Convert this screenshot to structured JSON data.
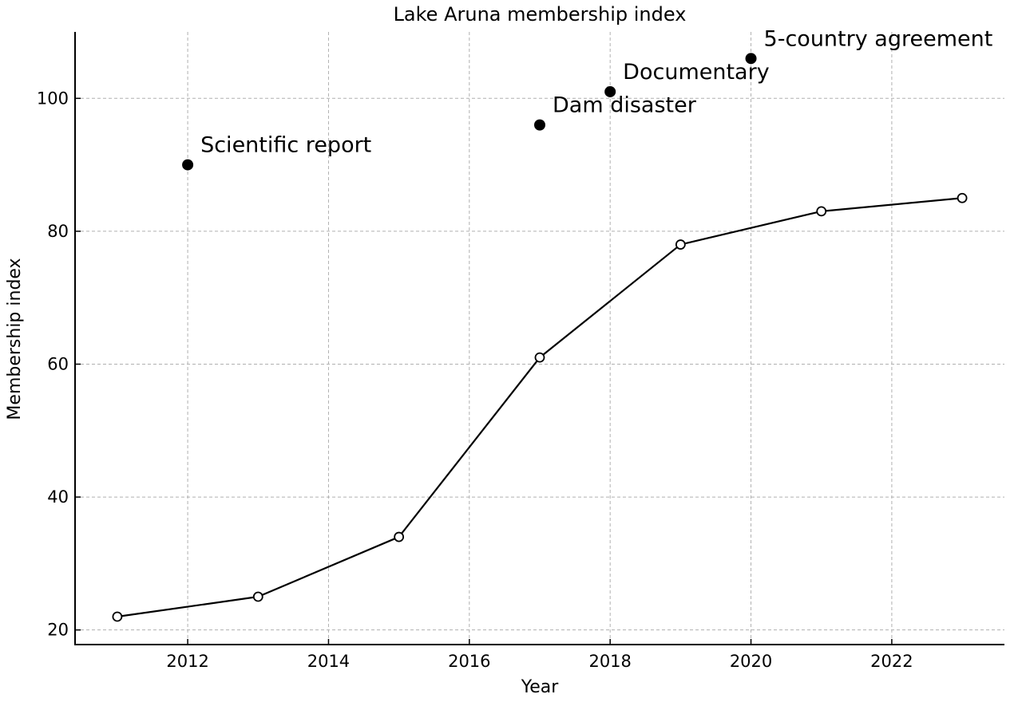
{
  "chart_data": {
    "type": "line",
    "title": "Lake Aruna membership index",
    "xlabel": "Year",
    "ylabel": "Membership index",
    "xlim": [
      2010.4,
      2023.6
    ],
    "ylim": [
      17.8,
      110
    ],
    "x_ticks": [
      2012,
      2014,
      2016,
      2018,
      2020,
      2022
    ],
    "y_ticks": [
      20,
      40,
      60,
      80,
      100
    ],
    "grid": true,
    "series": [
      {
        "x": [
          2011,
          2013,
          2015,
          2017,
          2019,
          2021,
          2023
        ],
        "y": [
          22,
          25,
          34,
          61,
          78,
          83,
          85
        ],
        "color": "#000000",
        "marker": "open-circle"
      }
    ],
    "events": [
      {
        "x": 2012,
        "y": 90,
        "label": "Scientific report"
      },
      {
        "x": 2017,
        "y": 96,
        "label": "Dam disaster"
      },
      {
        "x": 2018,
        "y": 101,
        "label": "Documentary"
      },
      {
        "x": 2020,
        "y": 106,
        "label": "5-country agreement"
      }
    ]
  }
}
